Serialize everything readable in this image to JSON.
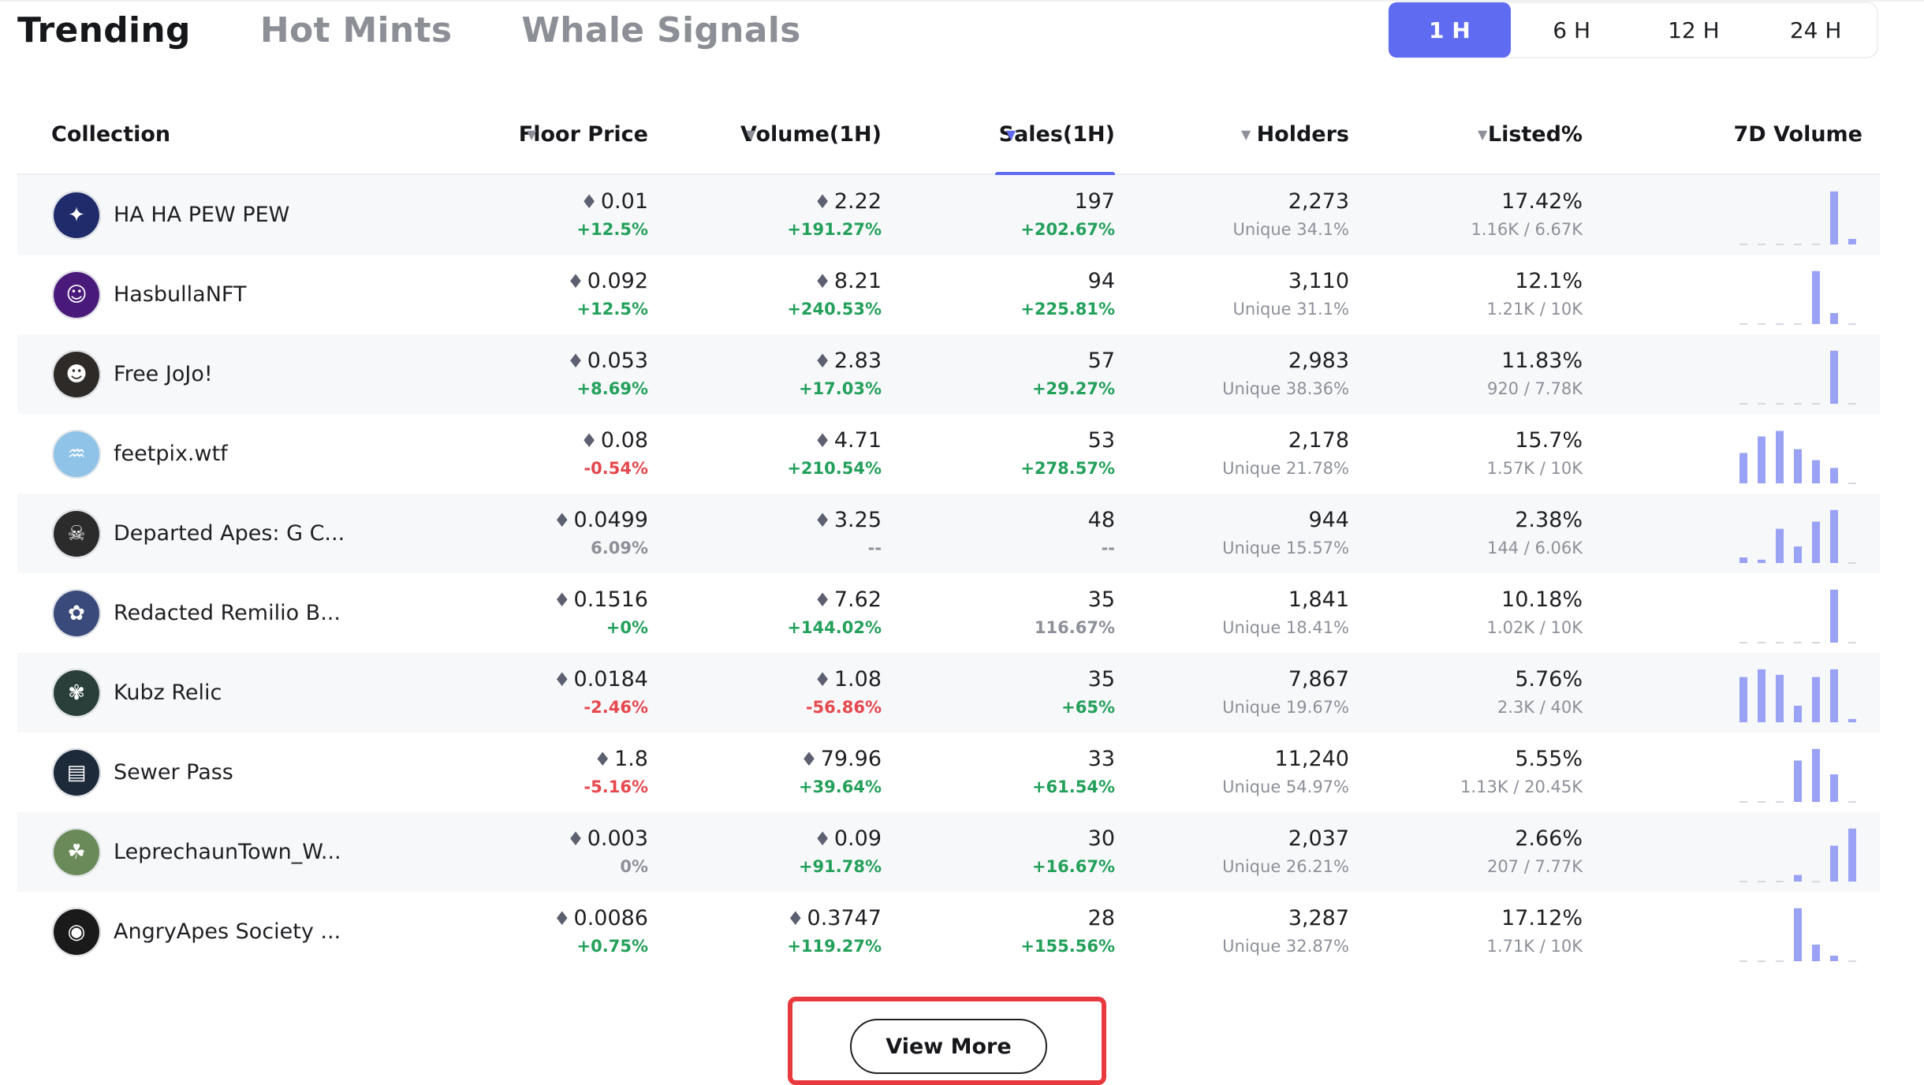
{
  "tabs": [
    "Trending",
    "Hot Mints",
    "Whale Signals"
  ],
  "time_options": [
    "1 H",
    "6 H",
    "12 H",
    "24 H"
  ],
  "columns": {
    "collection": "Collection",
    "floor": "Floor Price",
    "volume": "Volume(1H)",
    "sales": "Sales(1H)",
    "holders": "Holders",
    "listed": "Listed%",
    "spark": "7D Volume"
  },
  "colors": {
    "accent": "#5f6cf1",
    "positive": "#23a05a",
    "negative": "#e5484d",
    "highlight": "#e83a3e",
    "spark_bar": "#9aa2f5"
  },
  "rows": [
    {
      "name": "HA HA PEW PEW",
      "avatar_color": "#1f2b6b",
      "avatar_glyph": "✦",
      "floor": "0.01",
      "floor_chg": "+12.5%",
      "floor_dir": "up",
      "vol": "2.22",
      "vol_chg": "+191.27%",
      "vol_dir": "up",
      "sales": "197",
      "sales_chg": "+202.67%",
      "sales_dir": "up",
      "holders": "2,273",
      "unique": "Unique 34.1%",
      "listed": "17.42%",
      "listed_ratio": "1.16K / 6.67K",
      "spark": [
        0,
        0,
        0,
        0,
        0,
        0.96,
        0.1
      ]
    },
    {
      "name": "HasbullaNFT",
      "avatar_color": "#4a1a7a",
      "avatar_glyph": "☺",
      "floor": "0.092",
      "floor_chg": "+12.5%",
      "floor_dir": "up",
      "vol": "8.21",
      "vol_chg": "+240.53%",
      "vol_dir": "up",
      "sales": "94",
      "sales_chg": "+225.81%",
      "sales_dir": "up",
      "holders": "3,110",
      "unique": "Unique 31.1%",
      "listed": "12.1%",
      "listed_ratio": "1.21K / 10K",
      "spark": [
        0,
        0,
        0,
        0,
        0.96,
        0.2,
        0
      ]
    },
    {
      "name": "Free JoJo!",
      "avatar_color": "#2e2a28",
      "avatar_glyph": "☻",
      "floor": "0.053",
      "floor_chg": "+8.69%",
      "floor_dir": "up",
      "vol": "2.83",
      "vol_chg": "+17.03%",
      "vol_dir": "up",
      "sales": "57",
      "sales_chg": "+29.27%",
      "sales_dir": "up",
      "holders": "2,983",
      "unique": "Unique 38.36%",
      "listed": "11.83%",
      "listed_ratio": "920 / 7.78K",
      "spark": [
        0,
        0,
        0,
        0,
        0,
        0.96,
        0
      ]
    },
    {
      "name": "feetpix.wtf",
      "avatar_color": "#8fc3e8",
      "avatar_glyph": "♒",
      "floor": "0.08",
      "floor_chg": "-0.54%",
      "floor_dir": "down",
      "vol": "4.71",
      "vol_chg": "+210.54%",
      "vol_dir": "up",
      "sales": "53",
      "sales_chg": "+278.57%",
      "sales_dir": "up",
      "holders": "2,178",
      "unique": "Unique 21.78%",
      "listed": "15.7%",
      "listed_ratio": "1.57K / 10K",
      "spark": [
        0.55,
        0.85,
        0.95,
        0.62,
        0.42,
        0.28,
        0
      ]
    },
    {
      "name": "Departed Apes: G C...",
      "avatar_color": "#2b2b2b",
      "avatar_glyph": "☠",
      "floor": "0.0499",
      "floor_chg": "6.09%",
      "floor_dir": "flat",
      "vol": "3.25",
      "vol_chg": "--",
      "vol_dir": "flat",
      "sales": "48",
      "sales_chg": "--",
      "sales_dir": "flat",
      "holders": "944",
      "unique": "Unique 15.57%",
      "listed": "2.38%",
      "listed_ratio": "144 / 6.06K",
      "spark": [
        0.1,
        0.06,
        0.62,
        0.3,
        0.75,
        0.96,
        0
      ]
    },
    {
      "name": "Redacted Remilio B...",
      "avatar_color": "#3a4a7a",
      "avatar_glyph": "✿",
      "floor": "0.1516",
      "floor_chg": "+0%",
      "floor_dir": "up",
      "vol": "7.62",
      "vol_chg": "+144.02%",
      "vol_dir": "up",
      "sales": "35",
      "sales_chg": "116.67%",
      "sales_dir": "flat",
      "holders": "1,841",
      "unique": "Unique 18.41%",
      "listed": "10.18%",
      "listed_ratio": "1.02K / 10K",
      "spark": [
        0,
        0,
        0,
        0,
        0,
        0.96,
        0
      ]
    },
    {
      "name": "Kubz Relic",
      "avatar_color": "#2a3f3a",
      "avatar_glyph": "✾",
      "floor": "0.0184",
      "floor_chg": "-2.46%",
      "floor_dir": "down",
      "vol": "1.08",
      "vol_chg": "-56.86%",
      "vol_dir": "down",
      "sales": "35",
      "sales_chg": "+65%",
      "sales_dir": "up",
      "holders": "7,867",
      "unique": "Unique 19.67%",
      "listed": "5.76%",
      "listed_ratio": "2.3K / 40K",
      "spark": [
        0.82,
        0.96,
        0.86,
        0.3,
        0.82,
        0.96,
        0.06
      ]
    },
    {
      "name": "Sewer Pass",
      "avatar_color": "#1d2a3a",
      "avatar_glyph": "▤",
      "floor": "1.8",
      "floor_chg": "-5.16%",
      "floor_dir": "down",
      "vol": "79.96",
      "vol_chg": "+39.64%",
      "vol_dir": "up",
      "sales": "33",
      "sales_chg": "+61.54%",
      "sales_dir": "up",
      "holders": "11,240",
      "unique": "Unique 54.97%",
      "listed": "5.55%",
      "listed_ratio": "1.13K / 20.45K",
      "spark": [
        0,
        0,
        0,
        0.75,
        0.96,
        0.5,
        0
      ]
    },
    {
      "name": "LeprechaunTown_W...",
      "avatar_color": "#6a8a5a",
      "avatar_glyph": "☘",
      "floor": "0.003",
      "floor_chg": "0%",
      "floor_dir": "flat",
      "vol": "0.09",
      "vol_chg": "+91.78%",
      "vol_dir": "up",
      "sales": "30",
      "sales_chg": "+16.67%",
      "sales_dir": "up",
      "holders": "2,037",
      "unique": "Unique 26.21%",
      "listed": "2.66%",
      "listed_ratio": "207 / 7.77K",
      "spark": [
        0,
        0,
        0,
        0.12,
        0,
        0.65,
        0.96
      ]
    },
    {
      "name": "AngryApes Society ...",
      "avatar_color": "#1a1a1a",
      "avatar_glyph": "◉",
      "floor": "0.0086",
      "floor_chg": "+0.75%",
      "floor_dir": "up",
      "vol": "0.3747",
      "vol_chg": "+119.27%",
      "vol_dir": "up",
      "sales": "28",
      "sales_chg": "+155.56%",
      "sales_dir": "up",
      "holders": "3,287",
      "unique": "Unique 32.87%",
      "listed": "17.12%",
      "listed_ratio": "1.71K / 10K",
      "spark": [
        0,
        0,
        0,
        0.96,
        0.3,
        0.1,
        0
      ]
    }
  ],
  "view_more": "View More"
}
